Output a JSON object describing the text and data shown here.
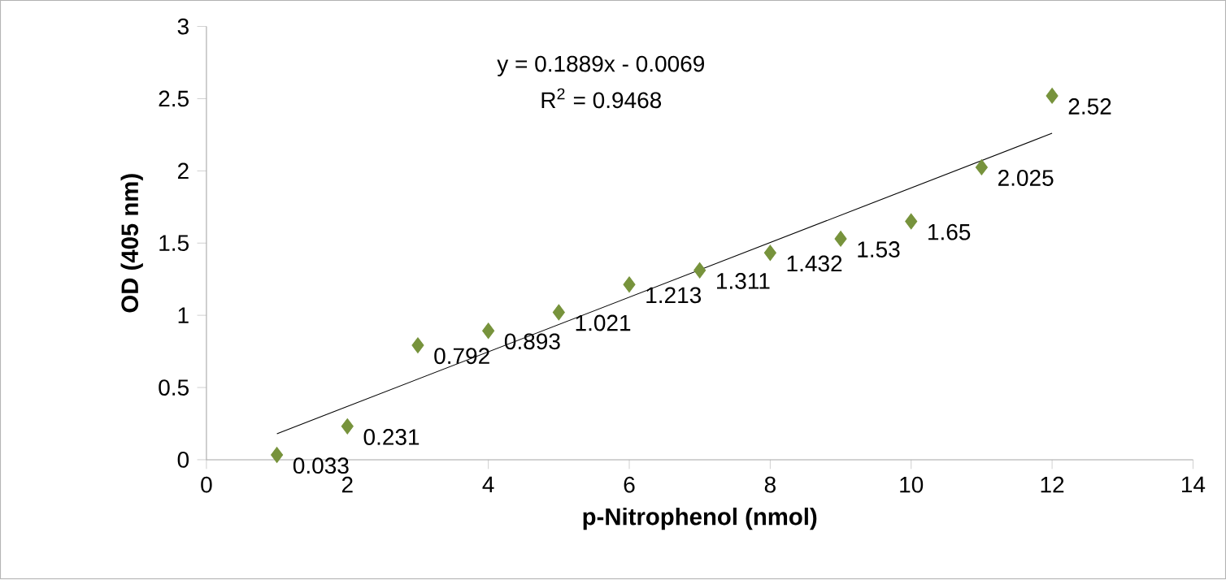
{
  "chart_data": {
    "type": "scatter",
    "xlabel": "p-Nitrophenol (nmol)",
    "ylabel": "OD (405 nm)",
    "xlim": [
      0,
      14
    ],
    "xticks": [
      0,
      2,
      4,
      6,
      8,
      10,
      12,
      14
    ],
    "ylim": [
      0,
      3
    ],
    "yticks": [
      0,
      0.5,
      1,
      1.5,
      2,
      2.5,
      3
    ],
    "series": [
      {
        "marker": "diamond",
        "color": "#77933c",
        "x": [
          1,
          2,
          3,
          4,
          5,
          6,
          7,
          8,
          9,
          10,
          11,
          12
        ],
        "values": [
          0.033,
          0.231,
          0.792,
          0.893,
          1.021,
          1.213,
          1.311,
          1.432,
          1.53,
          1.65,
          2.025,
          2.52
        ],
        "value_labels": [
          "0.033",
          "0.231",
          "0.792",
          "0.893",
          "1.021",
          "1.213",
          "1.311",
          "1.432",
          "1.53",
          "1.65",
          "2.025",
          "2.52"
        ]
      },
      {
        "type": "line",
        "marker": "none",
        "color": "#000000",
        "x": [
          1,
          12
        ],
        "values": [
          0.18,
          2.26
        ]
      }
    ],
    "annotations": [
      "y = 0.1889x - 0.0069",
      "R$^{2}$ = 0.9468"
    ]
  }
}
